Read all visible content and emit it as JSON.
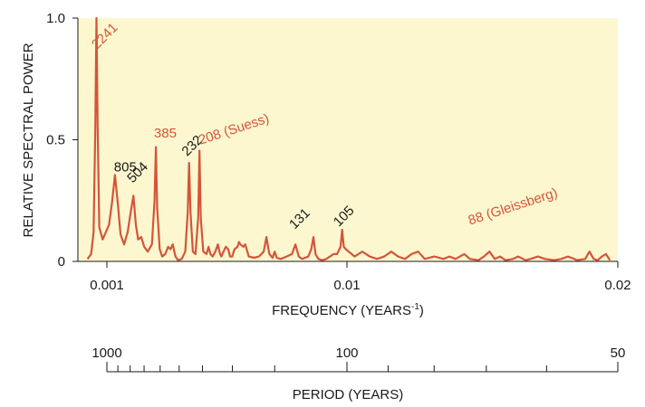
{
  "chart_data": {
    "type": "line",
    "xlabel_main": "FREQUENCY (YEARS",
    "xlabel_sup": "-1",
    "xlabel_tail": ")",
    "ylabel": "RELATIVE SPECTRAL POWER",
    "x_ticks": [
      {
        "value": 0.001,
        "label": "0.001"
      },
      {
        "value": 0.01,
        "label": "0.01"
      },
      {
        "value": 0.02,
        "label": "0.02"
      }
    ],
    "y_ticks": [
      {
        "value": 0,
        "label": "0"
      },
      {
        "value": 0.5,
        "label": "0.5"
      },
      {
        "value": 1.0,
        "label": "1.0"
      }
    ],
    "ylim": [
      0,
      1.0
    ],
    "grid": false,
    "period_axis": {
      "label": "PERIOD (YEARS)",
      "ticks": [
        {
          "value": 1000,
          "label": "1000"
        },
        {
          "value": 100,
          "label": "100"
        },
        {
          "value": 50,
          "label": "50"
        }
      ],
      "minor_ticks": [
        900,
        800,
        700,
        600,
        500,
        400,
        300,
        200,
        90,
        80,
        70,
        60
      ]
    },
    "series": [
      {
        "color": "#d4553a",
        "points": [
          [
            0.00083,
            0.01
          ],
          [
            0.00086,
            0.03
          ],
          [
            0.00088,
            0.12
          ],
          [
            0.000895,
            0.55
          ],
          [
            0.000905,
            1.0
          ],
          [
            0.000915,
            0.55
          ],
          [
            0.00093,
            0.14
          ],
          [
            0.00096,
            0.09
          ],
          [
            0.00099,
            0.12
          ],
          [
            0.00102,
            0.15
          ],
          [
            0.00105,
            0.24
          ],
          [
            0.00108,
            0.355
          ],
          [
            0.00111,
            0.24
          ],
          [
            0.00114,
            0.11
          ],
          [
            0.00118,
            0.07
          ],
          [
            0.00122,
            0.12
          ],
          [
            0.00126,
            0.21
          ],
          [
            0.00129,
            0.27
          ],
          [
            0.00132,
            0.15
          ],
          [
            0.00135,
            0.09
          ],
          [
            0.00139,
            0.1
          ],
          [
            0.00143,
            0.06
          ],
          [
            0.00148,
            0.04
          ],
          [
            0.00154,
            0.07
          ],
          [
            0.00158,
            0.25
          ],
          [
            0.0016,
            0.47
          ],
          [
            0.00162,
            0.22
          ],
          [
            0.00166,
            0.05
          ],
          [
            0.0017,
            0.02
          ],
          [
            0.00175,
            0.03
          ],
          [
            0.0018,
            0.06
          ],
          [
            0.00184,
            0.05
          ],
          [
            0.00188,
            0.07
          ],
          [
            0.00193,
            0.02
          ],
          [
            0.00198,
            0.005
          ],
          [
            0.00205,
            0.01
          ],
          [
            0.00212,
            0.04
          ],
          [
            0.00217,
            0.2
          ],
          [
            0.0022,
            0.405
          ],
          [
            0.00223,
            0.2
          ],
          [
            0.00228,
            0.04
          ],
          [
            0.00234,
            0.03
          ],
          [
            0.0024,
            0.18
          ],
          [
            0.00243,
            0.455
          ],
          [
            0.00246,
            0.18
          ],
          [
            0.00252,
            0.04
          ],
          [
            0.0026,
            0.03
          ],
          [
            0.00265,
            0.06
          ],
          [
            0.0027,
            0.03
          ],
          [
            0.00276,
            0.02
          ],
          [
            0.00283,
            0.04
          ],
          [
            0.0029,
            0.07
          ],
          [
            0.00296,
            0.03
          ],
          [
            0.003,
            0.02
          ],
          [
            0.00306,
            0.04
          ],
          [
            0.00313,
            0.06
          ],
          [
            0.0032,
            0.05
          ],
          [
            0.00326,
            0.02
          ],
          [
            0.00333,
            0.02
          ],
          [
            0.0034,
            0.05
          ],
          [
            0.0035,
            0.06
          ],
          [
            0.00355,
            0.08
          ],
          [
            0.0036,
            0.07
          ],
          [
            0.0037,
            0.06
          ],
          [
            0.00377,
            0.07
          ],
          [
            0.0039,
            0.02
          ],
          [
            0.0041,
            0.015
          ],
          [
            0.0043,
            0.02
          ],
          [
            0.0045,
            0.04
          ],
          [
            0.00462,
            0.1
          ],
          [
            0.00475,
            0.03
          ],
          [
            0.0049,
            0.015
          ],
          [
            0.005,
            0.04
          ],
          [
            0.0051,
            0.015
          ],
          [
            0.0053,
            0.01
          ],
          [
            0.0056,
            0.02
          ],
          [
            0.0059,
            0.03
          ],
          [
            0.0061,
            0.07
          ],
          [
            0.0063,
            0.02
          ],
          [
            0.0065,
            0.01
          ],
          [
            0.0069,
            0.02
          ],
          [
            0.0071,
            0.05
          ],
          [
            0.00725,
            0.1
          ],
          [
            0.0074,
            0.03
          ],
          [
            0.0076,
            0.01
          ],
          [
            0.0079,
            0.005
          ],
          [
            0.0082,
            0.01
          ],
          [
            0.0085,
            0.02
          ],
          [
            0.0088,
            0.03
          ],
          [
            0.0091,
            0.03
          ],
          [
            0.0094,
            0.06
          ],
          [
            0.00955,
            0.13
          ],
          [
            0.0097,
            0.06
          ],
          [
            0.0099,
            0.05
          ],
          [
            0.0102,
            0.02
          ],
          [
            0.0104,
            0.04
          ],
          [
            0.0106,
            0.02
          ],
          [
            0.0108,
            0.01
          ],
          [
            0.011,
            0.02
          ],
          [
            0.0112,
            0.04
          ],
          [
            0.0114,
            0.02
          ],
          [
            0.0116,
            0.01
          ],
          [
            0.0118,
            0.03
          ],
          [
            0.012,
            0.04
          ],
          [
            0.0122,
            0.01
          ],
          [
            0.0125,
            0.02
          ],
          [
            0.0128,
            0.01
          ],
          [
            0.013,
            0.02
          ],
          [
            0.0132,
            0.01
          ],
          [
            0.0135,
            0.03
          ],
          [
            0.0137,
            0.01
          ],
          [
            0.014,
            0.005
          ],
          [
            0.0142,
            0.02
          ],
          [
            0.0144,
            0.04
          ],
          [
            0.0146,
            0.01
          ],
          [
            0.0148,
            0.02
          ],
          [
            0.015,
            0.005
          ],
          [
            0.0153,
            0.01
          ],
          [
            0.0155,
            0.02
          ],
          [
            0.0158,
            0.005
          ],
          [
            0.016,
            0.01
          ],
          [
            0.0163,
            0.02
          ],
          [
            0.0166,
            0.01
          ],
          [
            0.017,
            0.005
          ],
          [
            0.0173,
            0.01
          ],
          [
            0.0176,
            0.02
          ],
          [
            0.0179,
            0.01
          ],
          [
            0.018,
            0.005
          ],
          [
            0.0184,
            0.01
          ],
          [
            0.0186,
            0.04
          ],
          [
            0.0188,
            0.01
          ],
          [
            0.019,
            0.005
          ],
          [
            0.0192,
            0.02
          ],
          [
            0.0194,
            0.03
          ],
          [
            0.0196,
            0.005
          ]
        ]
      }
    ],
    "annotations": [
      {
        "text": "2241",
        "x": 0.00091,
        "y": 0.87,
        "color": "#d4553a",
        "angle": -45
      },
      {
        "text": "805",
        "x": 0.00107,
        "y": 0.37,
        "color": "#1a1a1a",
        "angle": 0
      },
      {
        "text": "504",
        "x": 0.00128,
        "y": 0.32,
        "color": "#1a1a1a",
        "angle": -45
      },
      {
        "text": "385",
        "x": 0.00157,
        "y": 0.51,
        "color": "#d4553a",
        "angle": 0
      },
      {
        "text": "232",
        "x": 0.00216,
        "y": 0.43,
        "color": "#1a1a1a",
        "angle": -45
      },
      {
        "text": "208 (Suess)",
        "x": 0.00245,
        "y": 0.48,
        "color": "#d4553a",
        "angle": -18
      },
      {
        "text": "131",
        "x": 0.00605,
        "y": 0.13,
        "color": "#1a1a1a",
        "angle": -45
      },
      {
        "text": "105",
        "x": 0.00925,
        "y": 0.14,
        "color": "#1a1a1a",
        "angle": -45
      },
      {
        "text": "88 (Gleissberg)",
        "x": 0.0137,
        "y": 0.15,
        "color": "#d4553a",
        "angle": -18
      }
    ],
    "plot_background": "#fdf7cf"
  }
}
